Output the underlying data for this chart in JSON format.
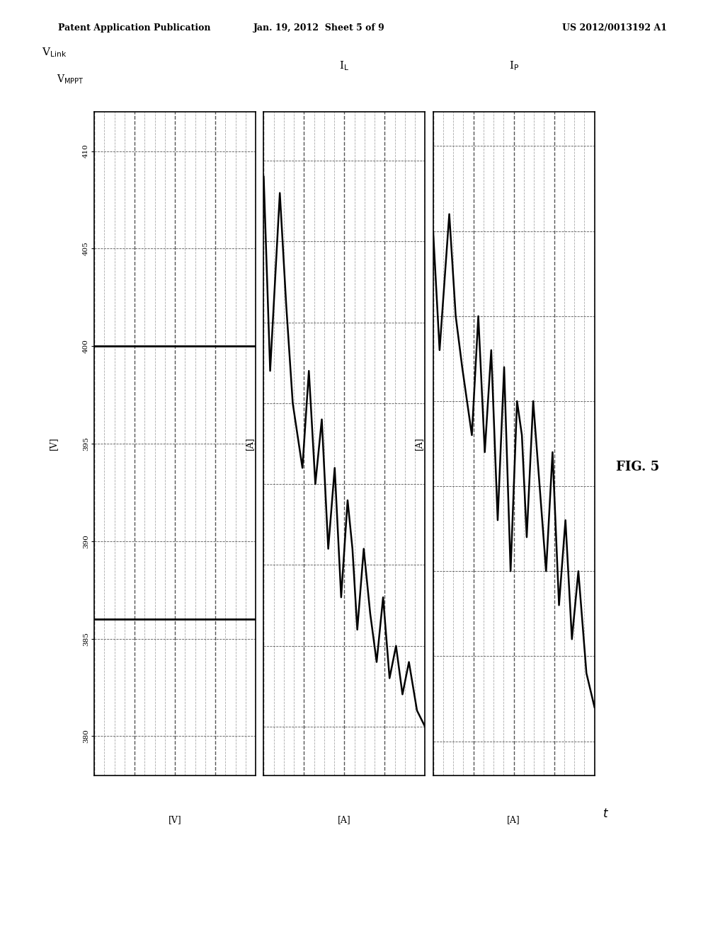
{
  "header_left": "Patent Application Publication",
  "header_center": "Jan. 19, 2012  Sheet 5 of 9",
  "header_right": "US 2012/0013192 A1",
  "fig_label": "FIG. 5",
  "t_axis_label": "t",
  "panel1": {
    "ylabel": "[V]",
    "signal_label1": "V$_{\\mathrm{Link}}$",
    "signal_label2": "V$_{\\mathrm{MPPT}}$",
    "yticks": [
      380,
      385,
      390,
      395,
      400,
      405,
      410
    ],
    "ylim": [
      378,
      412
    ],
    "line1_y": 400,
    "line2_y": 386
  },
  "panel2": {
    "ylabel": "[A]",
    "signal_label": "I$_{\\mathrm{L}}$",
    "yticks": [
      1.0,
      1.5,
      2.0,
      2.5,
      3.0,
      3.5,
      4.0,
      4.5
    ],
    "ylim": [
      0.7,
      4.8
    ],
    "x": [
      0.0,
      0.04,
      0.1,
      0.14,
      0.18,
      0.24,
      0.28,
      0.32,
      0.36,
      0.4,
      0.44,
      0.48,
      0.52,
      0.55,
      0.58,
      0.62,
      0.66,
      0.7,
      0.74,
      0.78,
      0.82,
      0.86,
      0.9,
      0.95,
      1.0
    ],
    "y": [
      4.4,
      3.2,
      4.3,
      3.6,
      3.0,
      2.6,
      3.2,
      2.5,
      2.9,
      2.1,
      2.6,
      1.8,
      2.4,
      2.1,
      1.6,
      2.1,
      1.7,
      1.4,
      1.8,
      1.3,
      1.5,
      1.2,
      1.4,
      1.1,
      1.0
    ]
  },
  "panel3": {
    "ylabel": "[A]",
    "signal_label": "I$_{\\mathrm{P}}$",
    "yticks": [
      -20,
      -15,
      -10,
      -5,
      0,
      5,
      10,
      15
    ],
    "ylim": [
      -22,
      17
    ],
    "x": [
      0.0,
      0.04,
      0.1,
      0.14,
      0.18,
      0.24,
      0.28,
      0.32,
      0.36,
      0.4,
      0.44,
      0.48,
      0.52,
      0.55,
      0.58,
      0.62,
      0.66,
      0.7,
      0.74,
      0.78,
      0.82,
      0.86,
      0.9,
      0.95,
      1.0
    ],
    "y": [
      10,
      3,
      11,
      5,
      2,
      -2,
      5,
      -3,
      3,
      -7,
      2,
      -10,
      0,
      -2,
      -8,
      0,
      -5,
      -10,
      -3,
      -12,
      -7,
      -14,
      -10,
      -16,
      -18
    ]
  },
  "n_major_vlines": 4,
  "n_minor_vlines": 3,
  "bg_color": "#ffffff",
  "line_color": "#000000",
  "grid_major_color": "#555555",
  "grid_minor_color": "#aaaaaa",
  "xlim": [
    0.0,
    1.0
  ]
}
